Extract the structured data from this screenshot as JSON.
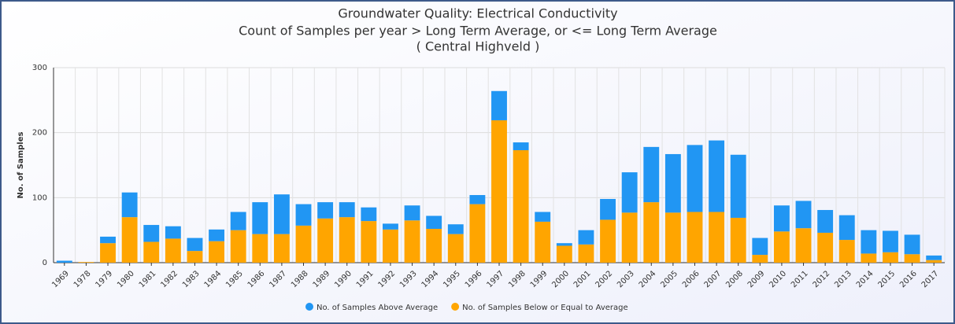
{
  "chart_data": {
    "type": "stacked-bar",
    "title": [
      "Groundwater Quality: Electrical Conductivity",
      "Count of Samples per year > Long Term Average, or <= Long Term Average",
      "( Central Highveld )"
    ],
    "y_label": "No. of Samples",
    "categories": [
      "1969",
      "1978",
      "1979",
      "1980",
      "1981",
      "1982",
      "1983",
      "1984",
      "1985",
      "1986",
      "1987",
      "1988",
      "1989",
      "1990",
      "1991",
      "1992",
      "1993",
      "1994",
      "1995",
      "1996",
      "1997",
      "1998",
      "1999",
      "2000",
      "2001",
      "2002",
      "2003",
      "2004",
      "2005",
      "2006",
      "2007",
      "2008",
      "2009",
      "2010",
      "2011",
      "2012",
      "2013",
      "2014",
      "2015",
      "2016",
      "2017"
    ],
    "series": [
      {
        "name": "No. of Samples Above Average",
        "color": "#2196f3",
        "values": [
          3,
          0,
          10,
          38,
          26,
          19,
          20,
          18,
          28,
          49,
          61,
          33,
          25,
          23,
          21,
          9,
          23,
          20,
          15,
          14,
          45,
          12,
          15,
          4,
          22,
          32,
          62,
          85,
          90,
          103,
          110,
          97,
          26,
          40,
          42,
          35,
          38,
          36,
          33,
          30,
          7
        ]
      },
      {
        "name": "No. of Samples Below or Equal to Average",
        "color": "#ffa500",
        "values": [
          0,
          1,
          30,
          70,
          32,
          37,
          18,
          33,
          50,
          44,
          44,
          57,
          68,
          70,
          64,
          51,
          65,
          52,
          44,
          90,
          219,
          173,
          63,
          26,
          28,
          66,
          77,
          93,
          77,
          78,
          78,
          69,
          12,
          48,
          53,
          46,
          35,
          14,
          16,
          13,
          4
        ]
      }
    ],
    "ylim": [
      0,
      300
    ],
    "yticks": [
      0,
      100,
      200,
      300
    ],
    "grid": true,
    "legend": "bottom"
  }
}
